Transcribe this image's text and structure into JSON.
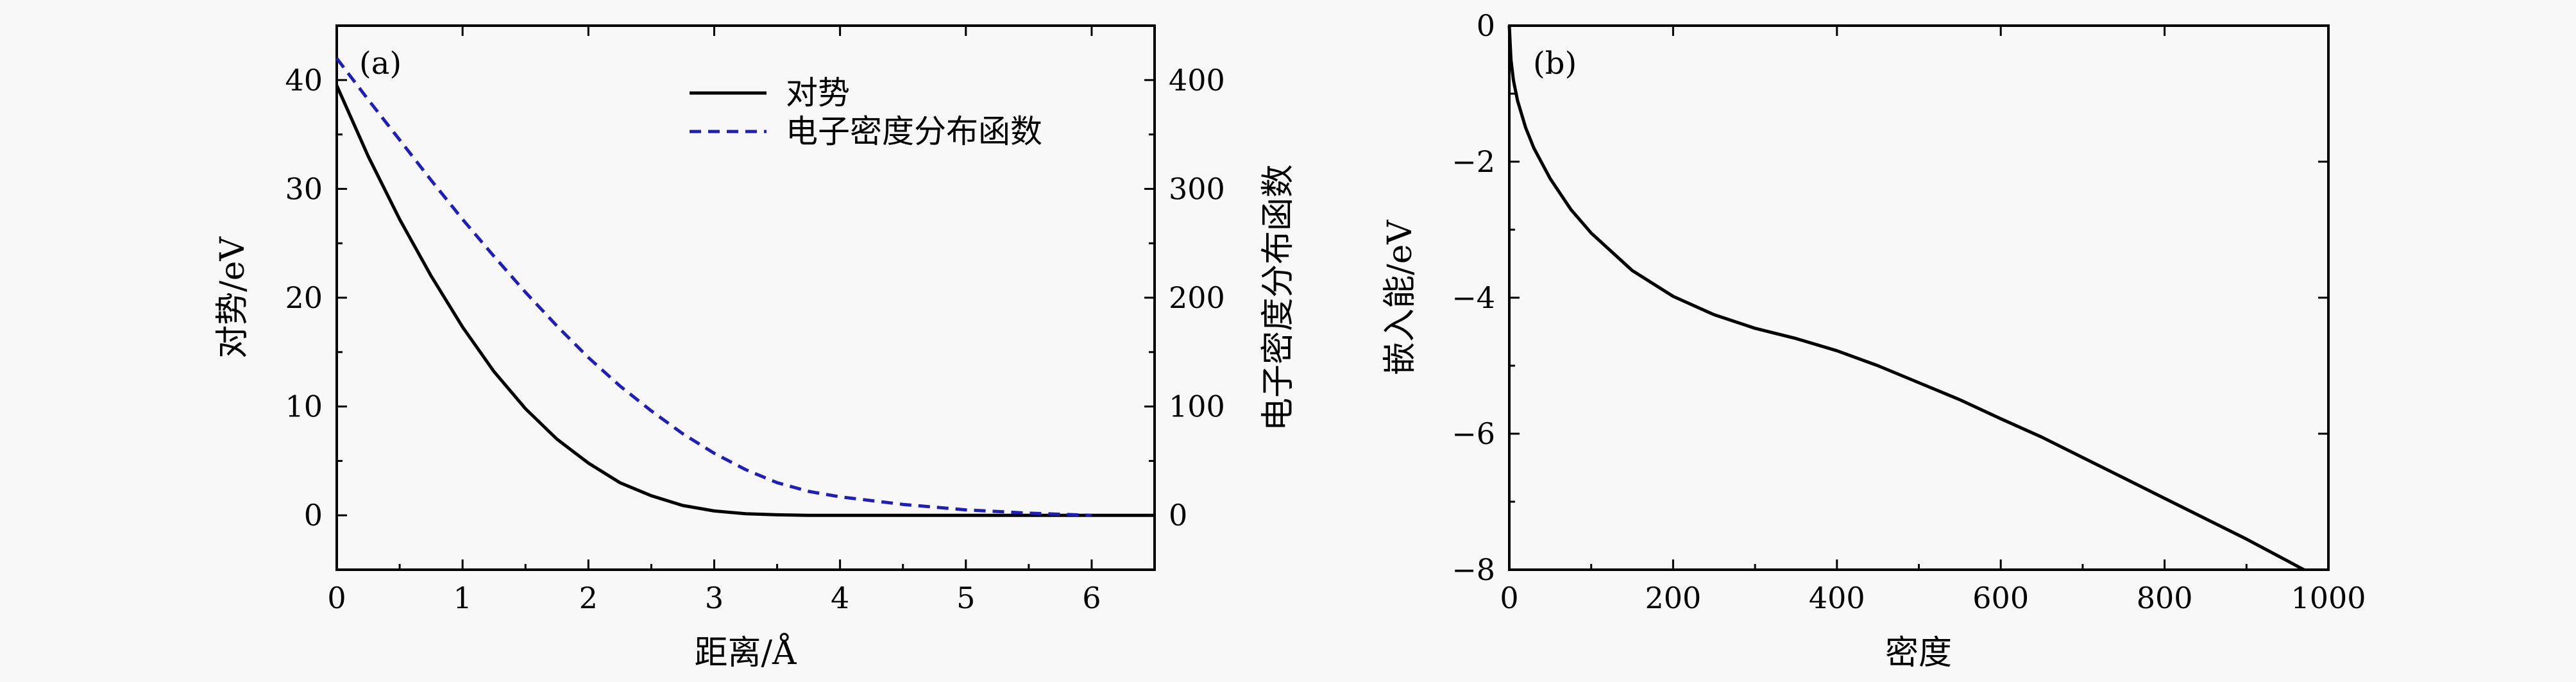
{
  "chart_data": [
    {
      "panel_label": "(a)",
      "type": "line",
      "xlabel": "距离/Å",
      "ylabel_left": "对势/eV",
      "ylabel_right": "电子密度分布函数",
      "xlim": [
        0,
        6.5
      ],
      "ylim_left": [
        -5,
        45
      ],
      "ylim_right": [
        -50,
        450
      ],
      "xticks": [
        0,
        1,
        2,
        3,
        4,
        5,
        6
      ],
      "yticks_left": [
        0,
        10,
        20,
        30,
        40
      ],
      "yticks_right": [
        0,
        100,
        200,
        300,
        400
      ],
      "legend_position": "top-center",
      "series": [
        {
          "name": "对势",
          "axis": "left",
          "color": "#000000",
          "style": "solid",
          "x": [
            0,
            0.25,
            0.5,
            0.75,
            1.0,
            1.25,
            1.5,
            1.75,
            2.0,
            2.25,
            2.5,
            2.75,
            3.0,
            3.25,
            3.5,
            3.75,
            4.0,
            4.5,
            5.0,
            5.5,
            6.0,
            6.5
          ],
          "y": [
            39.5,
            33.0,
            27.2,
            22.0,
            17.3,
            13.2,
            9.8,
            7.0,
            4.8,
            3.0,
            1.8,
            0.9,
            0.4,
            0.15,
            0.05,
            0.0,
            0.0,
            0.0,
            0.0,
            0.0,
            0.0,
            0.0
          ]
        },
        {
          "name": "电子密度分布函数",
          "axis": "right",
          "color": "#1f1fb4",
          "style": "dashed",
          "x": [
            0,
            0.25,
            0.5,
            0.75,
            1.0,
            1.25,
            1.5,
            1.75,
            2.0,
            2.25,
            2.5,
            2.75,
            3.0,
            3.25,
            3.5,
            3.75,
            4.0,
            4.5,
            5.0,
            5.5,
            6.0
          ],
          "y": [
            420,
            382,
            345,
            308,
            272,
            238,
            205,
            174,
            145,
            119,
            96,
            75,
            57,
            42,
            30,
            22,
            17,
            10,
            5,
            2,
            0
          ]
        }
      ]
    },
    {
      "panel_label": "(b)",
      "type": "line",
      "xlabel": "密度",
      "ylabel": "嵌入能/eV",
      "xlim": [
        0,
        1000
      ],
      "ylim": [
        -8,
        0
      ],
      "xticks": [
        0,
        200,
        400,
        600,
        800,
        1000
      ],
      "yticks": [
        -8,
        -6,
        -4,
        -2,
        0
      ],
      "series": [
        {
          "color": "#000000",
          "style": "solid",
          "x": [
            0,
            2,
            5,
            10,
            20,
            30,
            50,
            75,
            100,
            150,
            200,
            250,
            300,
            350,
            400,
            450,
            500,
            550,
            600,
            650,
            700,
            750,
            800,
            850,
            900,
            950,
            970
          ],
          "y": [
            0,
            -0.5,
            -0.8,
            -1.1,
            -1.5,
            -1.8,
            -2.25,
            -2.7,
            -3.05,
            -3.6,
            -3.98,
            -4.25,
            -4.45,
            -4.6,
            -4.78,
            -5.0,
            -5.25,
            -5.5,
            -5.78,
            -6.05,
            -6.35,
            -6.65,
            -6.95,
            -7.25,
            -7.55,
            -7.87,
            -8.0
          ]
        }
      ]
    }
  ]
}
